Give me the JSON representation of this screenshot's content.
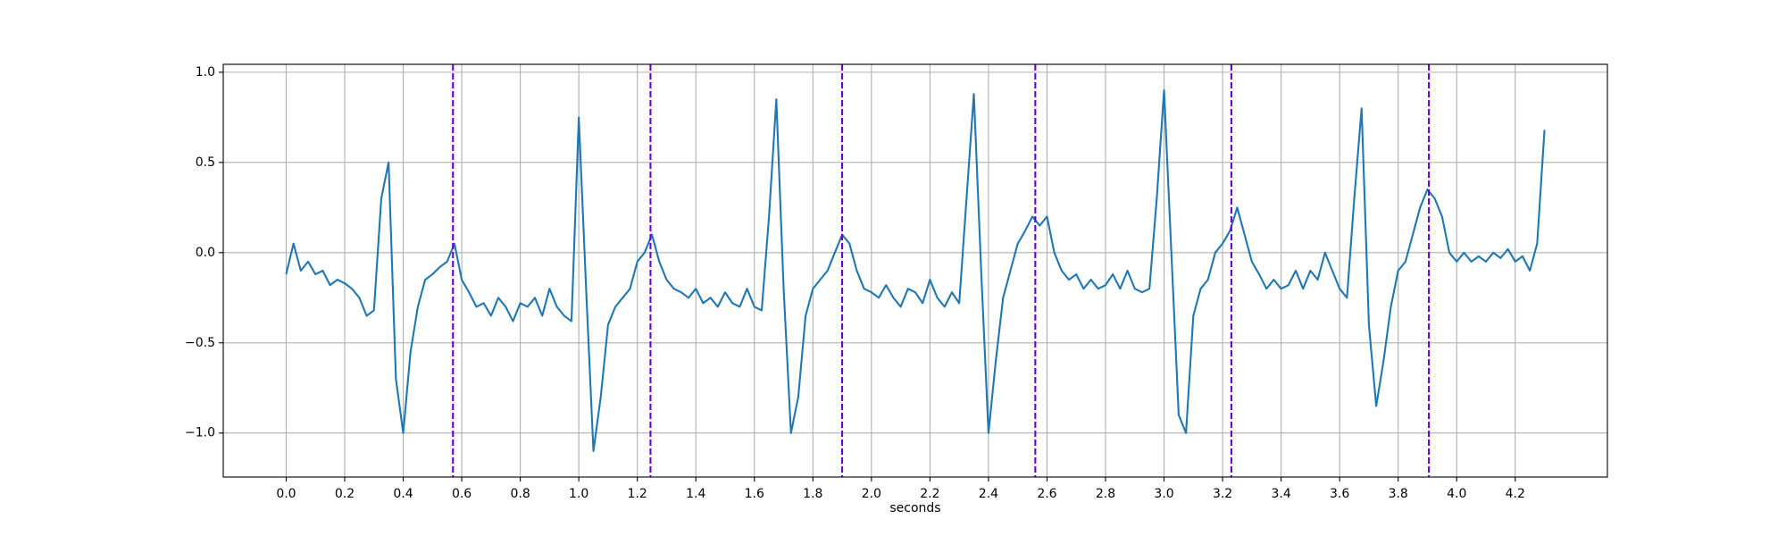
{
  "chart_data": {
    "type": "line",
    "xlabel": "seconds",
    "x": [
      0,
      0.025,
      0.05,
      0.075,
      0.1,
      0.125,
      0.15,
      0.175,
      0.2,
      0.225,
      0.25,
      0.275,
      0.3,
      0.325,
      0.35,
      0.375,
      0.4,
      0.425,
      0.45,
      0.475,
      0.5,
      0.525,
      0.55,
      0.575,
      0.6,
      0.625,
      0.65,
      0.675,
      0.7,
      0.725,
      0.75,
      0.775,
      0.8,
      0.825,
      0.85,
      0.875,
      0.9,
      0.925,
      0.95,
      0.975,
      1.0,
      1.025,
      1.05,
      1.075,
      1.1,
      1.125,
      1.15,
      1.175,
      1.2,
      1.225,
      1.25,
      1.275,
      1.3,
      1.325,
      1.35,
      1.375,
      1.4,
      1.425,
      1.45,
      1.475,
      1.5,
      1.525,
      1.55,
      1.575,
      1.6,
      1.625,
      1.65,
      1.675,
      1.7,
      1.725,
      1.75,
      1.775,
      1.8,
      1.825,
      1.85,
      1.875,
      1.9,
      1.925,
      1.95,
      1.975,
      2.0,
      2.025,
      2.05,
      2.075,
      2.1,
      2.125,
      2.15,
      2.175,
      2.2,
      2.225,
      2.25,
      2.275,
      2.3,
      2.325,
      2.35,
      2.375,
      2.4,
      2.425,
      2.45,
      2.475,
      2.5,
      2.525,
      2.55,
      2.575,
      2.6,
      2.625,
      2.65,
      2.675,
      2.7,
      2.725,
      2.75,
      2.775,
      2.8,
      2.825,
      2.85,
      2.875,
      2.9,
      2.925,
      2.95,
      2.975,
      3.0,
      3.025,
      3.05,
      3.075,
      3.1,
      3.125,
      3.15,
      3.175,
      3.2,
      3.225,
      3.25,
      3.275,
      3.3,
      3.325,
      3.35,
      3.375,
      3.4,
      3.425,
      3.45,
      3.475,
      3.5,
      3.525,
      3.55,
      3.575,
      3.6,
      3.625,
      3.65,
      3.675,
      3.7,
      3.725,
      3.75,
      3.775,
      3.8,
      3.825,
      3.85,
      3.875,
      3.9,
      3.925,
      3.95,
      3.975,
      4.0,
      4.025,
      4.05,
      4.075,
      4.1,
      4.125,
      4.15,
      4.175,
      4.2,
      4.225,
      4.25,
      4.275,
      4.3
    ],
    "series": [
      {
        "color": "#1f77b4",
        "values": [
          -0.12,
          0.05,
          -0.1,
          -0.05,
          -0.12,
          -0.1,
          -0.18,
          -0.15,
          -0.17,
          -0.2,
          -0.25,
          -0.35,
          -0.32,
          0.3,
          0.5,
          -0.7,
          -1.0,
          -0.55,
          -0.3,
          -0.15,
          -0.12,
          -0.08,
          -0.05,
          0.05,
          -0.15,
          -0.22,
          -0.3,
          -0.28,
          -0.35,
          -0.25,
          -0.3,
          -0.38,
          -0.28,
          -0.3,
          -0.25,
          -0.35,
          -0.2,
          -0.3,
          -0.35,
          -0.38,
          0.75,
          -0.2,
          -1.1,
          -0.8,
          -0.4,
          -0.3,
          -0.25,
          -0.2,
          -0.05,
          0.0,
          0.1,
          -0.05,
          -0.15,
          -0.2,
          -0.22,
          -0.25,
          -0.2,
          -0.28,
          -0.25,
          -0.3,
          -0.22,
          -0.28,
          -0.3,
          -0.2,
          -0.3,
          -0.32,
          0.2,
          0.85,
          -0.2,
          -1.0,
          -0.8,
          -0.35,
          -0.2,
          -0.15,
          -0.1,
          0.0,
          0.1,
          0.05,
          -0.1,
          -0.2,
          -0.22,
          -0.25,
          -0.18,
          -0.25,
          -0.3,
          -0.2,
          -0.22,
          -0.28,
          -0.15,
          -0.25,
          -0.3,
          -0.22,
          -0.28,
          0.3,
          0.88,
          -0.1,
          -1.0,
          -0.6,
          -0.25,
          -0.1,
          0.05,
          0.12,
          0.2,
          0.15,
          0.2,
          0.0,
          -0.1,
          -0.15,
          -0.12,
          -0.2,
          -0.15,
          -0.2,
          -0.18,
          -0.12,
          -0.2,
          -0.1,
          -0.2,
          -0.22,
          -0.2,
          0.3,
          0.9,
          0.0,
          -0.9,
          -1.0,
          -0.35,
          -0.2,
          -0.15,
          0.0,
          0.05,
          0.12,
          0.25,
          0.1,
          -0.05,
          -0.12,
          -0.2,
          -0.15,
          -0.2,
          -0.18,
          -0.1,
          -0.2,
          -0.1,
          -0.15,
          0.0,
          -0.1,
          -0.2,
          -0.25,
          0.3,
          0.8,
          -0.4,
          -0.85,
          -0.6,
          -0.3,
          -0.1,
          -0.05,
          0.1,
          0.25,
          0.35,
          0.3,
          0.2,
          0.0,
          -0.05,
          0.0,
          -0.05,
          -0.02,
          -0.05,
          0.0,
          -0.03,
          0.02,
          -0.05,
          -0.02,
          -0.1,
          0.05,
          0.68
        ]
      }
    ],
    "vlines": [
      0.57,
      1.245,
      1.9,
      2.56,
      3.23,
      3.905
    ],
    "vline_color": "#6a00d0",
    "xlim": [
      -0.215,
      4.515
    ],
    "ylim": [
      -1.244,
      1.044
    ],
    "xticks": [
      {
        "value": 0,
        "label": "0.0"
      },
      0.2,
      0.4,
      0.6,
      0.8,
      {
        "value": 1,
        "label": "1.0"
      },
      1.2,
      1.4,
      1.6,
      1.8,
      {
        "value": 2,
        "label": "2.0"
      },
      2.2,
      2.4,
      2.6,
      2.8,
      {
        "value": 3,
        "label": "3.0"
      },
      3.2,
      3.4,
      3.6,
      3.8,
      {
        "value": 4,
        "label": "4.0"
      },
      4.2
    ],
    "yticks": [
      {
        "value": -1,
        "label": "−1.0"
      },
      {
        "value": -0.5,
        "label": "−0.5"
      },
      {
        "value": 0,
        "label": "0.0"
      },
      0.5,
      {
        "value": 1,
        "label": "1.0"
      }
    ],
    "grid": true
  }
}
